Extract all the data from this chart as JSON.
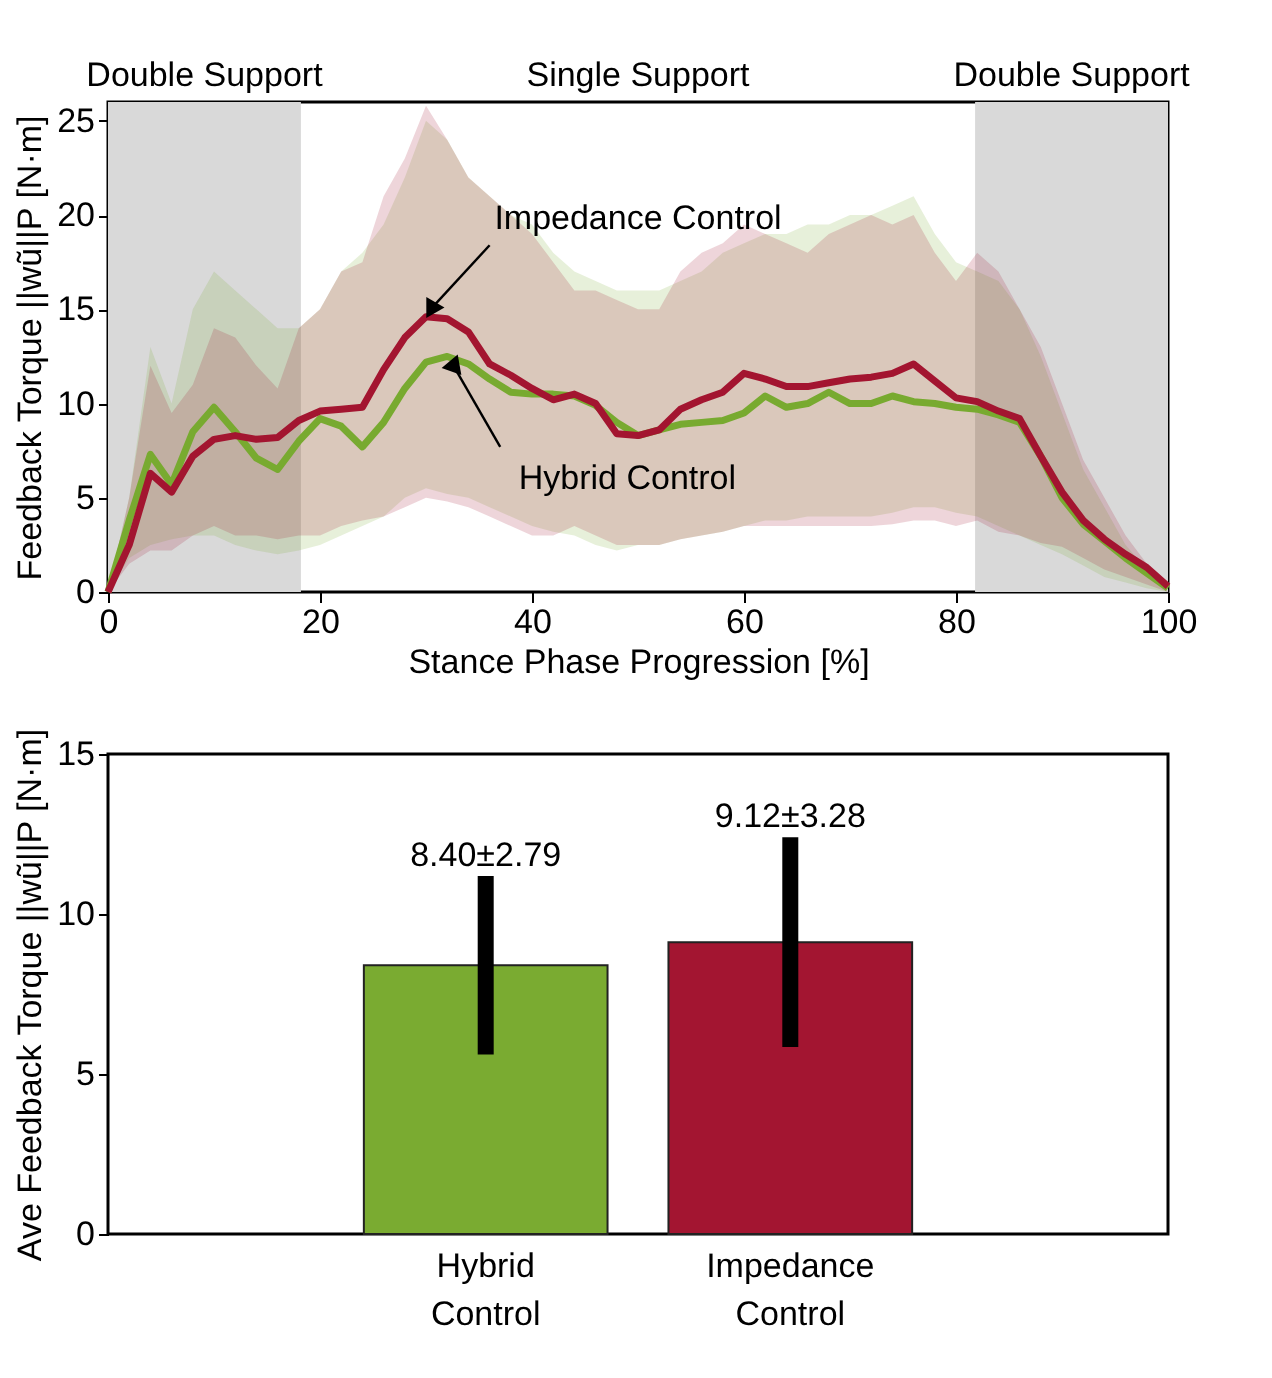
{
  "chart_data": [
    {
      "type": "line",
      "xlabel": "Stance Phase Progression [%]",
      "ylabel": "Feedback Torque ||wũ||P [N·m]",
      "xlim": [
        0,
        100
      ],
      "xticks": [
        0,
        20,
        40,
        60,
        80,
        100
      ],
      "ylim": [
        0,
        26
      ],
      "yticks": [
        0,
        5,
        10,
        15,
        20,
        25
      ],
      "grid": false,
      "line_style": "solid",
      "x": [
        0,
        2,
        4,
        6,
        8,
        10,
        12,
        14,
        16,
        18,
        20,
        22,
        24,
        26,
        28,
        30,
        32,
        34,
        36,
        38,
        40,
        42,
        44,
        46,
        48,
        50,
        52,
        54,
        56,
        58,
        60,
        62,
        64,
        66,
        68,
        70,
        72,
        74,
        76,
        78,
        80,
        82,
        84,
        86,
        88,
        90,
        92,
        94,
        96,
        98,
        100
      ],
      "series": [
        {
          "name": "Hybrid Control",
          "color": "#78aa30",
          "values": [
            0,
            3.8,
            7.3,
            5.7,
            8.5,
            9.8,
            8.5,
            7.1,
            6.5,
            8.0,
            9.2,
            8.8,
            7.7,
            9.0,
            10.8,
            12.2,
            12.5,
            12.1,
            11.3,
            10.6,
            10.5,
            10.5,
            10.4,
            9.9,
            9.0,
            8.3,
            8.6,
            8.9,
            9.0,
            9.1,
            9.5,
            10.4,
            9.8,
            10.0,
            10.6,
            10.0,
            10.0,
            10.4,
            10.1,
            10.0,
            9.8,
            9.7,
            9.4,
            9.0,
            7.2,
            5.0,
            3.6,
            2.7,
            1.8,
            1.0,
            0.2
          ],
          "lower": [
            0,
            1.8,
            2.5,
            2.8,
            3,
            3,
            2.5,
            2.2,
            2,
            2.2,
            2.5,
            3,
            3.5,
            4,
            5,
            5.5,
            5.2,
            5,
            4.5,
            4,
            3.5,
            3.2,
            3,
            2.5,
            2.2,
            2.5,
            2.5,
            2.8,
            3,
            3.2,
            3.5,
            3.8,
            3.8,
            4,
            4,
            4,
            4,
            4.2,
            4.5,
            4.5,
            4.2,
            4,
            3.5,
            3,
            2.5,
            2,
            1.4,
            0.8,
            0.5,
            0.2,
            0
          ],
          "upper": [
            0,
            5,
            13,
            10,
            15,
            17,
            16,
            15,
            14,
            14,
            15,
            17,
            18,
            19.5,
            22,
            25,
            24,
            22,
            21,
            20,
            19.5,
            18,
            17,
            16.5,
            16,
            16,
            16,
            16.5,
            17,
            18,
            18.5,
            19,
            19,
            19.5,
            19.5,
            20,
            20,
            20.5,
            21,
            19,
            17.5,
            17,
            16.5,
            15,
            12.5,
            9.5,
            6.5,
            4.5,
            2.5,
            1.2,
            0
          ]
        },
        {
          "name": "Impedance Control",
          "color": "#a31530",
          "values": [
            0,
            2.5,
            6.3,
            5.3,
            7.2,
            8.1,
            8.3,
            8.1,
            8.2,
            9.1,
            9.6,
            9.7,
            9.8,
            11.8,
            13.5,
            14.6,
            14.5,
            13.8,
            12.1,
            11.5,
            10.8,
            10.2,
            10.5,
            10.0,
            8.4,
            8.3,
            8.6,
            9.7,
            10.2,
            10.6,
            11.6,
            11.3,
            10.9,
            10.9,
            11.1,
            11.3,
            11.4,
            11.6,
            12.1,
            11.2,
            10.3,
            10.1,
            9.6,
            9.2,
            7.2,
            5.3,
            3.8,
            2.8,
            2.0,
            1.3,
            0.3
          ],
          "lower": [
            0,
            1.5,
            2.2,
            2.2,
            3,
            3.5,
            3,
            3,
            2.8,
            3,
            3,
            3.5,
            3.8,
            4,
            4.5,
            5,
            4.8,
            4.5,
            4,
            3.5,
            3,
            3,
            3.5,
            3,
            2.5,
            2.5,
            2.5,
            2.8,
            3,
            3.2,
            3.5,
            3.5,
            3.5,
            3.5,
            3.5,
            3.5,
            3.5,
            3.6,
            3.8,
            3.8,
            3.5,
            3.8,
            3.2,
            3,
            2.6,
            2.4,
            1.8,
            1.2,
            0.8,
            0.4,
            0
          ],
          "upper": [
            0,
            5,
            12,
            9.5,
            11,
            14,
            13.5,
            12,
            10.8,
            14,
            15,
            17,
            17.5,
            21,
            23,
            25.8,
            24,
            22,
            21,
            20,
            19,
            17.5,
            16,
            16,
            15.5,
            15,
            15,
            17,
            18,
            18.5,
            19.5,
            19,
            18.5,
            18,
            19,
            19.5,
            20,
            19.5,
            20,
            18,
            16.5,
            18,
            17,
            15,
            13,
            10,
            7,
            5,
            3,
            1.5,
            0
          ]
        }
      ],
      "bands": [
        {
          "axis": "x",
          "from": 0,
          "to": 18.2,
          "label": "Double Support",
          "color": "#d9d9d9"
        },
        {
          "axis": "x",
          "from": 81.8,
          "to": 100,
          "label": "Double Support",
          "color": "#d9d9d9"
        }
      ],
      "annotations": [
        "Single Support"
      ]
    },
    {
      "type": "bar",
      "ylabel": "Ave Feedback Torque ||wũ||P [N·m]",
      "categories": [
        "Hybrid Control",
        "Impedance Control"
      ],
      "values": [
        8.4,
        9.12
      ],
      "errors": [
        2.79,
        3.28
      ],
      "colors": [
        "#7aab31",
        "#a31531"
      ],
      "value_labels": [
        "8.40±2.79",
        "9.12±3.28"
      ],
      "ylim": [
        0,
        15
      ],
      "yticks": [
        0,
        5,
        10,
        15
      ],
      "grid": false
    }
  ]
}
